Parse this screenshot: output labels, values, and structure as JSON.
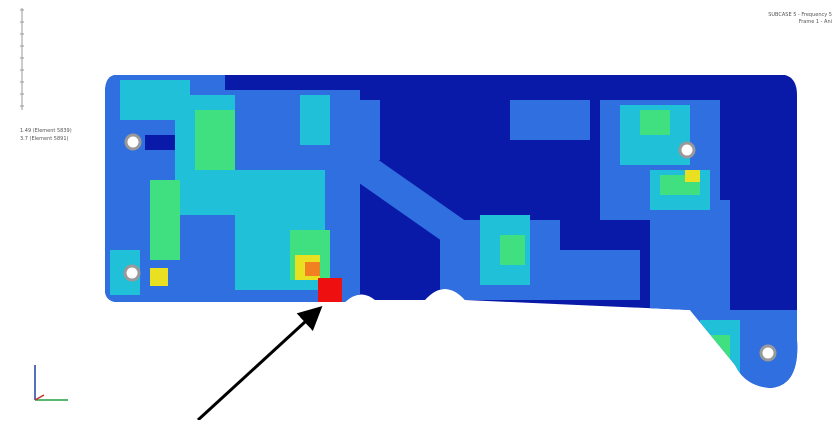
{
  "header": {
    "lines": [
      "SUBCASE 5 - Frequency 5",
      "Frame 1 - Ani"
    ]
  },
  "annotation": {
    "lines": [
      "1.49 (Element 5839)",
      "3.7 (Element 5891)"
    ]
  }
}
